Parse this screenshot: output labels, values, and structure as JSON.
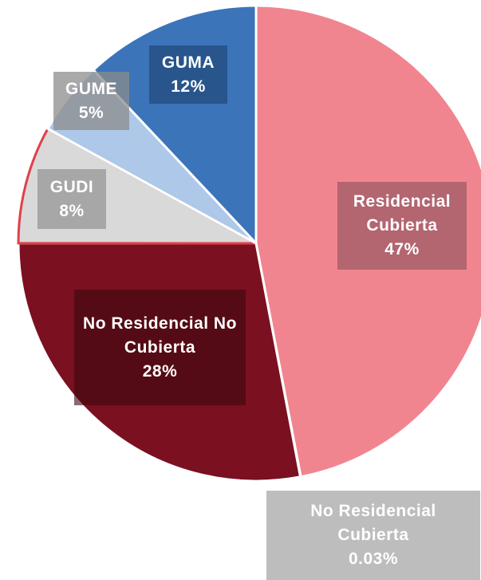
{
  "chart_data": {
    "type": "pie",
    "categories": [
      "Residencial Cubierta",
      "No Residencial Cubierta",
      "No Residencial No Cubierta",
      "GUDI",
      "GUME",
      "GUMA"
    ],
    "values": [
      47,
      0.03,
      28,
      8,
      5,
      12
    ],
    "value_labels": [
      "47%",
      "0.03%",
      "28%",
      "8%",
      "5%",
      "12%"
    ],
    "colors": [
      "#f08590",
      "#b8b8b8",
      "#7b1020",
      "#d9d9d9",
      "#adc8e8",
      "#3b74b9"
    ]
  }
}
